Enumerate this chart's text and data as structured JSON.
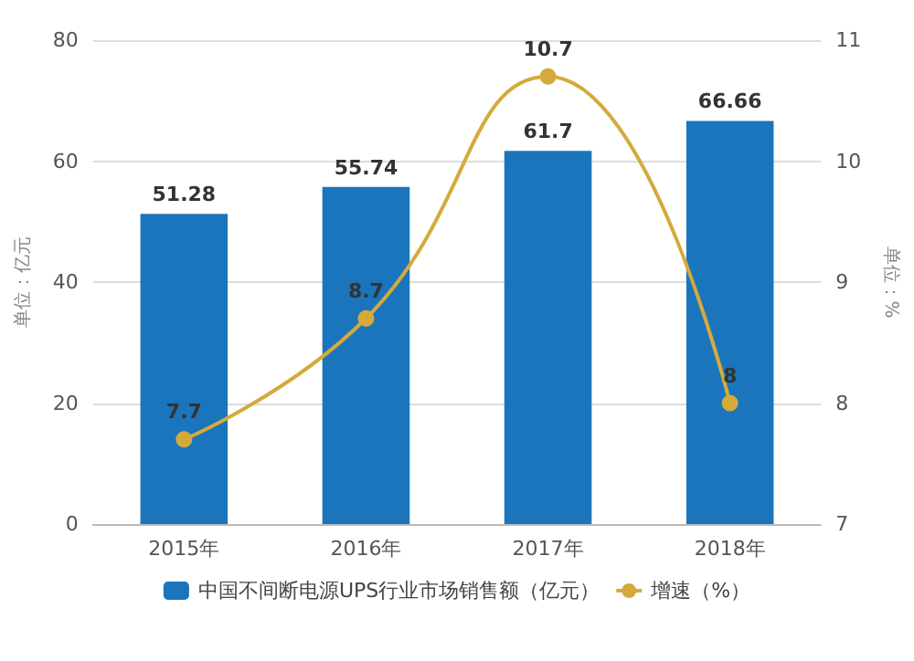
{
  "chart_data": {
    "type": "bar",
    "categories": [
      "2015年",
      "2016年",
      "2017年",
      "2018年"
    ],
    "series": [
      {
        "name": "中国不间断电源UPS行业市场销售额（亿元）",
        "color": "#1a75bc",
        "values": [
          51.28,
          55.74,
          61.7,
          66.66
        ]
      },
      {
        "name": "增速（%）",
        "type": "line",
        "axis": "y2",
        "color": "#d4aa3c",
        "values": [
          7.7,
          8.7,
          10.7,
          8
        ]
      }
    ],
    "ylabel": "单位：亿元",
    "y2label": "单位：%",
    "ylim": [
      0,
      80
    ],
    "yticks": [
      0,
      20,
      40,
      60,
      80
    ],
    "y2lim": [
      7,
      11
    ],
    "y2ticks": [
      7,
      8,
      9,
      10,
      11
    ],
    "data_labels": true,
    "grid": "y",
    "legend": "bottom",
    "marker": "circle"
  }
}
